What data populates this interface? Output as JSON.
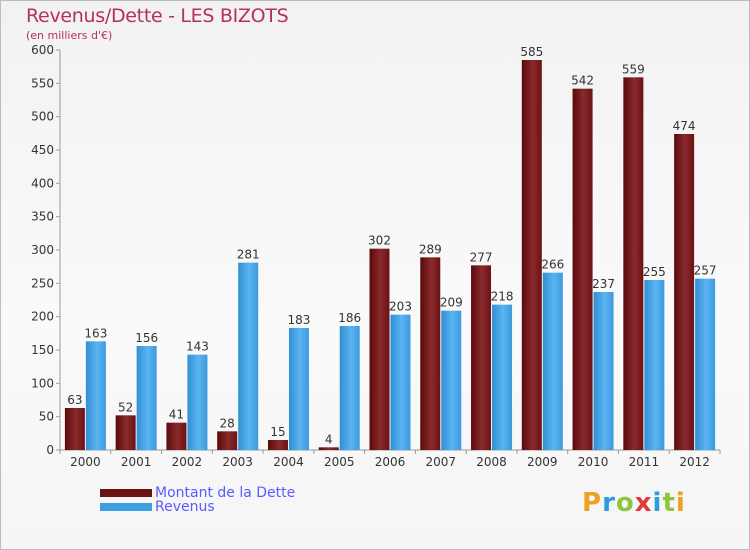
{
  "title": "Revenus/Dette - LES BIZOTS",
  "subtitle": "(en milliers d'€)",
  "logo": {
    "text": "Proxiti",
    "letters": [
      "P",
      "r",
      "o",
      "x",
      "i",
      "t",
      "i"
    ],
    "colors": [
      "#f0a020",
      "#2e9be0",
      "#8cc63e",
      "#e03a3a",
      "#2e9be0",
      "#8cc63e",
      "#f0a020"
    ]
  },
  "chart_data": {
    "type": "bar",
    "categories": [
      "2000",
      "2001",
      "2002",
      "2003",
      "2004",
      "2005",
      "2006",
      "2007",
      "2008",
      "2009",
      "2010",
      "2011",
      "2012"
    ],
    "series": [
      {
        "name": "Montant de la Dette",
        "color": "#7a1416",
        "values": [
          63,
          52,
          41,
          28,
          15,
          4,
          302,
          289,
          277,
          585,
          542,
          559,
          474
        ]
      },
      {
        "name": "Revenus",
        "color": "#3d9ee0",
        "values": [
          163,
          156,
          143,
          281,
          183,
          186,
          203,
          209,
          218,
          266,
          237,
          255,
          257
        ]
      }
    ],
    "ylim": [
      0,
      600
    ],
    "yticks": [
      0,
      50,
      100,
      150,
      200,
      250,
      300,
      350,
      400,
      450,
      500,
      550,
      600
    ],
    "grid": false,
    "legend": "bottom-left"
  }
}
